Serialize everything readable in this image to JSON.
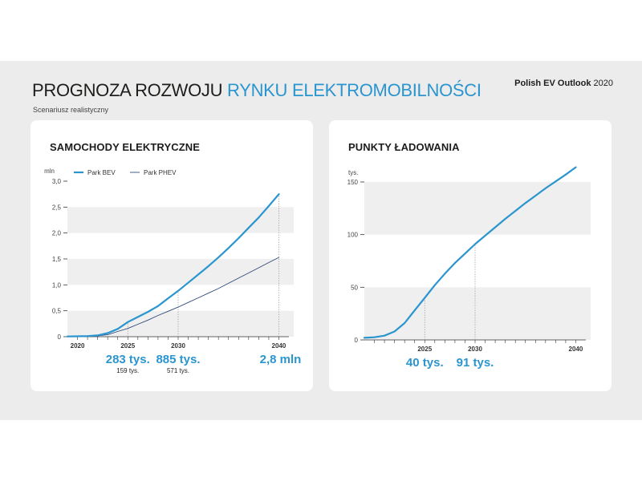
{
  "header": {
    "title_part1": "PROGNOZA ROZWOJU ",
    "title_part2": "RYNKU ELEKTROMOBILNOŚCI",
    "subtitle": "Scenariusz realistyczny",
    "brand_bold": "Polish EV Outlook",
    "brand_year": " 2020"
  },
  "colors": {
    "accent": "#2a95cf",
    "phev": "#2f4a7a",
    "band": "#efefef",
    "background": "#ececec"
  },
  "chart_data": [
    {
      "type": "line",
      "title": "SAMOCHODY ELEKTRYCZNE",
      "ylabel": "mln",
      "xlabel": "",
      "ylim": [
        0,
        3.0
      ],
      "xlim": [
        2019,
        2041
      ],
      "y_ticks": [
        "0",
        "0,5",
        "1,0",
        "1,5",
        "2,0",
        "2,5",
        "3,0"
      ],
      "x_tick_labels": [
        "2020",
        "2025",
        "2030",
        "2040"
      ],
      "legend": "top-left",
      "grid_bands": true,
      "series": [
        {
          "name": "Park BEV",
          "x": [
            2019,
            2020,
            2021,
            2022,
            2023,
            2024,
            2025,
            2026,
            2027,
            2028,
            2029,
            2030,
            2031,
            2032,
            2033,
            2034,
            2035,
            2036,
            2037,
            2038,
            2039,
            2040
          ],
          "y": [
            0.004,
            0.007,
            0.012,
            0.025,
            0.07,
            0.15,
            0.283,
            0.38,
            0.48,
            0.59,
            0.74,
            0.885,
            1.04,
            1.2,
            1.36,
            1.53,
            1.71,
            1.9,
            2.1,
            2.3,
            2.52,
            2.75
          ]
        },
        {
          "name": "Park PHEV",
          "x": [
            2019,
            2020,
            2021,
            2022,
            2023,
            2024,
            2025,
            2026,
            2027,
            2028,
            2029,
            2030,
            2031,
            2032,
            2033,
            2034,
            2035,
            2036,
            2037,
            2038,
            2039,
            2040
          ],
          "y": [
            0.003,
            0.005,
            0.008,
            0.015,
            0.04,
            0.1,
            0.159,
            0.24,
            0.32,
            0.41,
            0.49,
            0.571,
            0.66,
            0.75,
            0.84,
            0.93,
            1.03,
            1.13,
            1.23,
            1.33,
            1.43,
            1.53
          ]
        }
      ],
      "annotations": [
        {
          "x": "2025",
          "main": "283 tys.",
          "sub": "159 tys."
        },
        {
          "x": "2030",
          "main": "885 tys.",
          "sub": "571 tys."
        },
        {
          "x": "2040",
          "main": "2,8 mln",
          "sub": ""
        }
      ]
    },
    {
      "type": "line",
      "title": "PUNKTY ŁADOWANIA",
      "ylabel": "tys.",
      "xlabel": "",
      "ylim": [
        0,
        150
      ],
      "xlim": [
        2019,
        2041
      ],
      "y_ticks": [
        "0",
        "50",
        "100",
        "150"
      ],
      "x_tick_labels": [
        "2025",
        "2030",
        "2040"
      ],
      "grid_bands": true,
      "series": [
        {
          "name": "",
          "x": [
            2019,
            2020,
            2021,
            2022,
            2023,
            2024,
            2025,
            2026,
            2027,
            2028,
            2029,
            2030,
            2031,
            2032,
            2033,
            2034,
            2035,
            2036,
            2037,
            2038,
            2039,
            2040
          ],
          "y": [
            2,
            2.5,
            4,
            8,
            16,
            28,
            40,
            52,
            63,
            73,
            82,
            91,
            99,
            107,
            115,
            122.5,
            130,
            137,
            144,
            150.5,
            157,
            164
          ]
        }
      ],
      "annotations": [
        {
          "x": "2025",
          "main": "40 tys.",
          "sub": ""
        },
        {
          "x": "2030",
          "main": "91 tys.",
          "sub": ""
        }
      ]
    }
  ]
}
